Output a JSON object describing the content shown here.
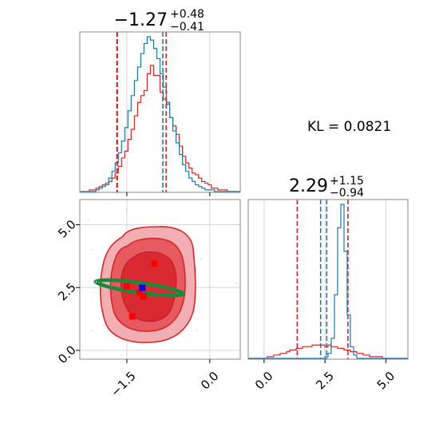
{
  "chart_data": {
    "type": "corner-plot",
    "annotation": "KL = 0.0821",
    "colors": {
      "blue": "#1f77b4",
      "red": "#d62728",
      "red_fill_light": "#f0a3a8",
      "red_fill_dark": "#e0393f",
      "green": "#1a8a3a",
      "grid": "#d6d6d6",
      "axes": "#888888"
    },
    "parameters": [
      {
        "title_main": "−1.27",
        "title_sup": "+0.48",
        "title_sub": "−0.41",
        "median": -1.27,
        "quantiles_red": [
          -1.68,
          -0.79
        ],
        "quantiles_blue": [
          -1.67,
          -0.85
        ],
        "xlim": [
          -2.35,
          0.55
        ],
        "ticks": [
          -1.5,
          0.0
        ],
        "tick_labels": [
          "−1.5",
          "0.0"
        ],
        "hist_red": [
          0,
          0,
          0,
          1,
          1,
          2,
          3,
          4,
          4,
          6,
          8,
          11,
          15,
          20,
          24,
          31,
          37,
          45,
          53,
          57,
          60,
          70,
          75,
          69,
          69,
          59,
          55,
          52,
          44,
          39,
          34,
          27,
          21,
          17,
          14,
          11,
          10,
          8,
          6,
          5,
          4,
          2,
          2,
          1,
          1,
          1,
          0,
          0,
          0,
          0
        ],
        "hist_blue": [
          0,
          0,
          0,
          0,
          0,
          1,
          2,
          3,
          5,
          8,
          12,
          17,
          23,
          30,
          38,
          48,
          57,
          66,
          74,
          82,
          88,
          92,
          90,
          85,
          79,
          70,
          62,
          53,
          44,
          36,
          29,
          22,
          16,
          12,
          8,
          6,
          4,
          3,
          2,
          1,
          1,
          1,
          0,
          0,
          0,
          0,
          0,
          0,
          0,
          0
        ]
      },
      {
        "title_main": "2.29",
        "title_sup": "+1.15",
        "title_sub": "−0.94",
        "median": 2.29,
        "quantiles_red": [
          1.36,
          3.44
        ],
        "quantiles_blue": [
          2.32,
          2.57
        ],
        "xlim": [
          -0.65,
          5.9
        ],
        "ticks": [
          0.0,
          2.5,
          5.0
        ],
        "tick_labels": [
          "0.0",
          "2.5",
          "5.0"
        ],
        "hist_red": [
          0,
          0,
          0,
          0,
          0,
          0,
          1,
          1,
          2,
          2,
          3,
          3,
          4,
          5,
          5,
          6,
          6,
          7,
          7,
          7,
          8,
          8,
          8,
          8,
          7,
          8,
          7,
          7,
          6,
          6,
          5,
          5,
          4,
          4,
          3,
          3,
          2,
          2,
          1,
          1,
          1,
          1,
          0,
          0,
          0,
          0,
          0,
          0,
          0,
          0
        ],
        "hist_blue": [
          0,
          0,
          0,
          0,
          0,
          0,
          0,
          0,
          0,
          0,
          0,
          0,
          0,
          0,
          0,
          0,
          0,
          0,
          0,
          0,
          0,
          0,
          0,
          0,
          1,
          3,
          12,
          38,
          78,
          92,
          64,
          26,
          7,
          2,
          0,
          0,
          0,
          0,
          0,
          0,
          0,
          0,
          0,
          0,
          0,
          0,
          0,
          0,
          0,
          0
        ]
      }
    ],
    "joint": {
      "xlim": [
        -2.35,
        0.55
      ],
      "ylim": [
        -0.35,
        6.0
      ],
      "yticks": [
        0.0,
        2.5,
        5.0
      ],
      "ytick_labels": [
        "0.0",
        "2.5",
        "5.0"
      ],
      "markers_red": [
        [
          -1.27,
          2.29
        ],
        [
          -1.0,
          3.45
        ],
        [
          -1.2,
          2.15
        ],
        [
          -1.4,
          1.35
        ],
        [
          -1.5,
          2.55
        ]
      ],
      "marker_blue": [
        -1.22,
        2.49
      ],
      "green_ellipse": {
        "cx": -1.27,
        "cy": 2.49,
        "rx": 0.82,
        "ry": 0.14,
        "tilt_deg": 8
      }
    }
  }
}
